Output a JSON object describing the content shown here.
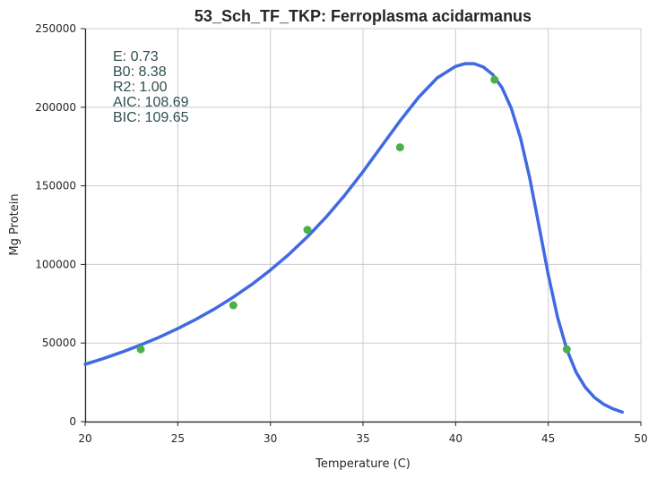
{
  "chart_data": {
    "type": "scatter",
    "title": "53_Sch_TF_TKP: Ferroplasma acidarmanus",
    "xlabel": "Temperature (C)",
    "ylabel": "Mg Protein",
    "xlim": [
      20,
      50
    ],
    "ylim": [
      0,
      250000
    ],
    "x_ticks": [
      "20",
      "25",
      "30",
      "35",
      "40",
      "45",
      "50"
    ],
    "y_ticks": [
      "0",
      "50000",
      "100000",
      "150000",
      "200000",
      "250000"
    ],
    "grid": true,
    "points": {
      "x": [
        23,
        28,
        32,
        37,
        42.1,
        46
      ],
      "y": [
        46000,
        74000,
        122000,
        174500,
        217500,
        46000
      ],
      "color": "#4daf4a"
    },
    "fit_curve": {
      "color": "#4169e1",
      "x": [
        20,
        21,
        22,
        23,
        24,
        25,
        26,
        27,
        28,
        29,
        30,
        31,
        32,
        33,
        34,
        35,
        36,
        37,
        38,
        39,
        40,
        40.5,
        41,
        41.5,
        42,
        42.5,
        43,
        43.5,
        44,
        44.5,
        45,
        45.5,
        46,
        46.5,
        47,
        47.5,
        48,
        48.5,
        49
      ],
      "y": [
        36500,
        40200,
        44300,
        48800,
        53700,
        59200,
        65200,
        71800,
        79200,
        87300,
        96400,
        106400,
        117600,
        130000,
        143800,
        159000,
        175200,
        191300,
        206300,
        218600,
        226000,
        227700,
        227700,
        225600,
        220800,
        212500,
        199500,
        180500,
        155000,
        124500,
        93500,
        66500,
        46000,
        31500,
        21800,
        15300,
        11000,
        8100,
        6000
      ]
    },
    "stats": [
      "E:  0.73",
      "B0:  8.38",
      "R2:  1.00",
      "AIC: 108.69",
      "BIC: 109.65"
    ]
  }
}
